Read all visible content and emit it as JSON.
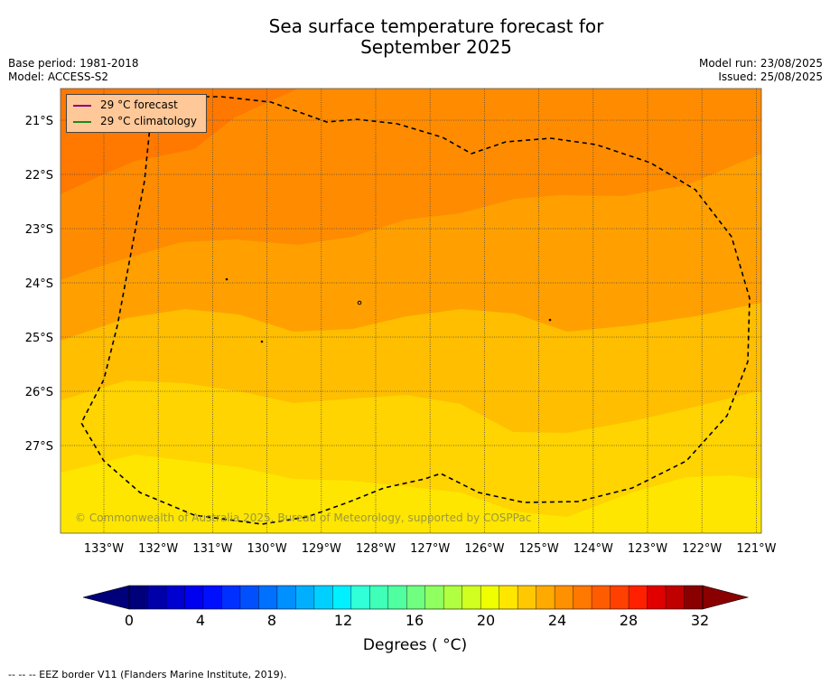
{
  "title_line1": "Sea surface temperature forecast for",
  "title_line2": "September 2025",
  "base_period": "Base period: 1981-2018",
  "model": "Model: ACCESS-S2",
  "model_run": "Model run: 23/08/2025",
  "issued": "Issued: 25/08/2025",
  "legend": {
    "forecast_label": "29 °C  forecast",
    "forecast_color": "#8b007d",
    "climatology_label": "29 °C  climatology",
    "climatology_color": "#1a8a1a"
  },
  "copyright": "© Commonwealth of Australia 2025, Bureau of Meteorology, supported by COSPPac",
  "lat_labels": [
    "21°S",
    "22°S",
    "23°S",
    "24°S",
    "25°S",
    "26°S",
    "27°S"
  ],
  "lon_labels": [
    "133°W",
    "132°W",
    "131°W",
    "130°W",
    "129°W",
    "128°W",
    "127°W",
    "126°W",
    "125°W",
    "124°W",
    "123°W",
    "122°W",
    "121°W"
  ],
  "colorbar": {
    "ticks": [
      "0",
      "4",
      "8",
      "12",
      "16",
      "20",
      "24",
      "28",
      "32"
    ],
    "title": "Degrees ( °C)",
    "colors": [
      "#00007a",
      "#0000a8",
      "#0000d0",
      "#0000f0",
      "#0010ff",
      "#0030ff",
      "#0050ff",
      "#0070ff",
      "#0090ff",
      "#00b0ff",
      "#00d0ff",
      "#00f0ff",
      "#30ffd8",
      "#40ffb8",
      "#50ffa0",
      "#70ff80",
      "#90ff60",
      "#b0ff40",
      "#d0ff20",
      "#f0ff00",
      "#ffe600",
      "#ffc800",
      "#ffaa00",
      "#ff9000",
      "#ff7800",
      "#ff5c00",
      "#ff4000",
      "#ff2000",
      "#e00000",
      "#c00000",
      "#8a0000"
    ],
    "low_end_color": "#00007a",
    "high_end_color": "#8a0000"
  },
  "footer": "--  --  -- EEZ border V11 (Flanders Marine Institute, 2019)."
}
